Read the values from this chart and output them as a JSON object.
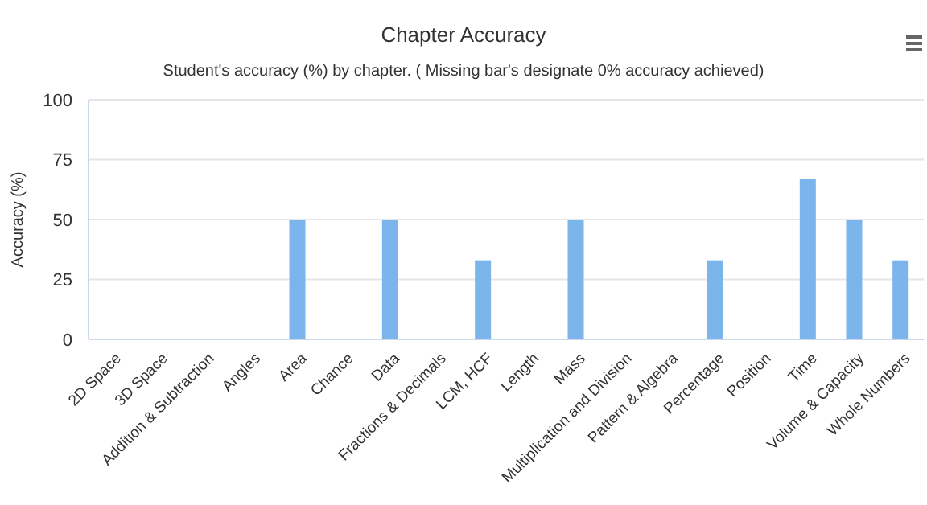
{
  "chart_data": {
    "type": "bar",
    "title": "Chapter Accuracy",
    "subtitle": "Student's accuracy (%) by chapter. ( Missing bar's designate 0% accuracy achieved)",
    "ylabel": "Accuracy (%)",
    "categories": [
      "2D Space",
      "3D Space",
      "Addition & Subtraction",
      "Angles",
      "Area",
      "Chance",
      "Data",
      "Fractions & Decimals",
      "LCM, HCF",
      "Length",
      "Mass",
      "Multiplication and Division",
      "Pattern & Algebra",
      "Percentage",
      "Position",
      "Time",
      "Volume & Capacity",
      "Whole Numbers"
    ],
    "values": [
      0,
      0,
      0,
      0,
      50,
      0,
      50,
      0,
      33,
      0,
      50,
      0,
      0,
      33,
      0,
      67,
      50,
      33
    ],
    "color": "#7cb5ec",
    "ylim": [
      0,
      100
    ],
    "yticks": [
      0,
      25,
      50,
      75,
      100
    ],
    "grid": "y"
  }
}
